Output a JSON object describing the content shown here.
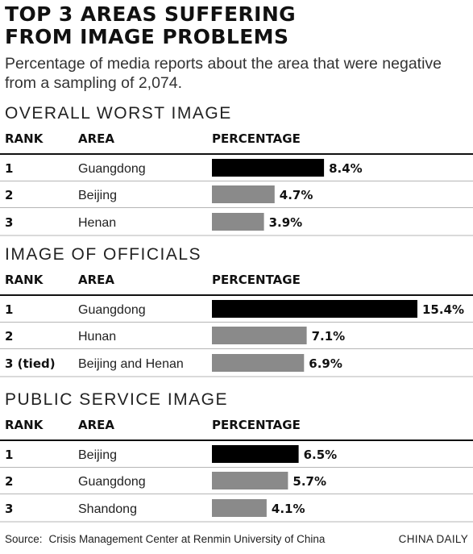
{
  "title_lines": [
    "TOP 3 AREAS SUFFERING",
    "FROM IMAGE PROBLEMS"
  ],
  "subtitle_lines": [
    "Percentage of media reports about the area that were negative",
    "from a sampling of 2,074."
  ],
  "headers": {
    "rank": "RANK",
    "area": "AREA",
    "percentage": "PERCENTAGE"
  },
  "colors": {
    "top_bar": "#000000",
    "other_bar": "#8a8a8a"
  },
  "chart_data": [
    {
      "type": "bar",
      "title": "OVERALL WORST IMAGE",
      "unit": "%",
      "xlim": [
        0,
        15.4
      ],
      "rows": [
        {
          "rank": "1",
          "area": "Guangdong",
          "value": 8.4,
          "label": "8.4%"
        },
        {
          "rank": "2",
          "area": "Beijing",
          "value": 4.7,
          "label": "4.7%"
        },
        {
          "rank": "3",
          "area": "Henan",
          "value": 3.9,
          "label": "3.9%"
        }
      ]
    },
    {
      "type": "bar",
      "title": "IMAGE OF OFFICIALS",
      "unit": "%",
      "xlim": [
        0,
        15.4
      ],
      "rows": [
        {
          "rank": "1",
          "area": "Guangdong",
          "value": 15.4,
          "label": "15.4%"
        },
        {
          "rank": "2",
          "area": "Hunan",
          "value": 7.1,
          "label": "7.1%"
        },
        {
          "rank": "3 (tied)",
          "area": "Beijing and Henan",
          "value": 6.9,
          "label": "6.9%"
        }
      ]
    },
    {
      "type": "bar",
      "title": "PUBLIC SERVICE IMAGE",
      "unit": "%",
      "xlim": [
        0,
        15.4
      ],
      "rows": [
        {
          "rank": "1",
          "area": "Beijing",
          "value": 6.5,
          "label": "6.5%"
        },
        {
          "rank": "2",
          "area": "Guangdong",
          "value": 5.7,
          "label": "5.7%"
        },
        {
          "rank": "3",
          "area": "Shandong",
          "value": 4.1,
          "label": "4.1%"
        }
      ]
    }
  ],
  "footer": {
    "source_label": "Source:",
    "source_text": "Crisis Management Center at Renmin University of China",
    "credit": "CHINA DAILY"
  }
}
